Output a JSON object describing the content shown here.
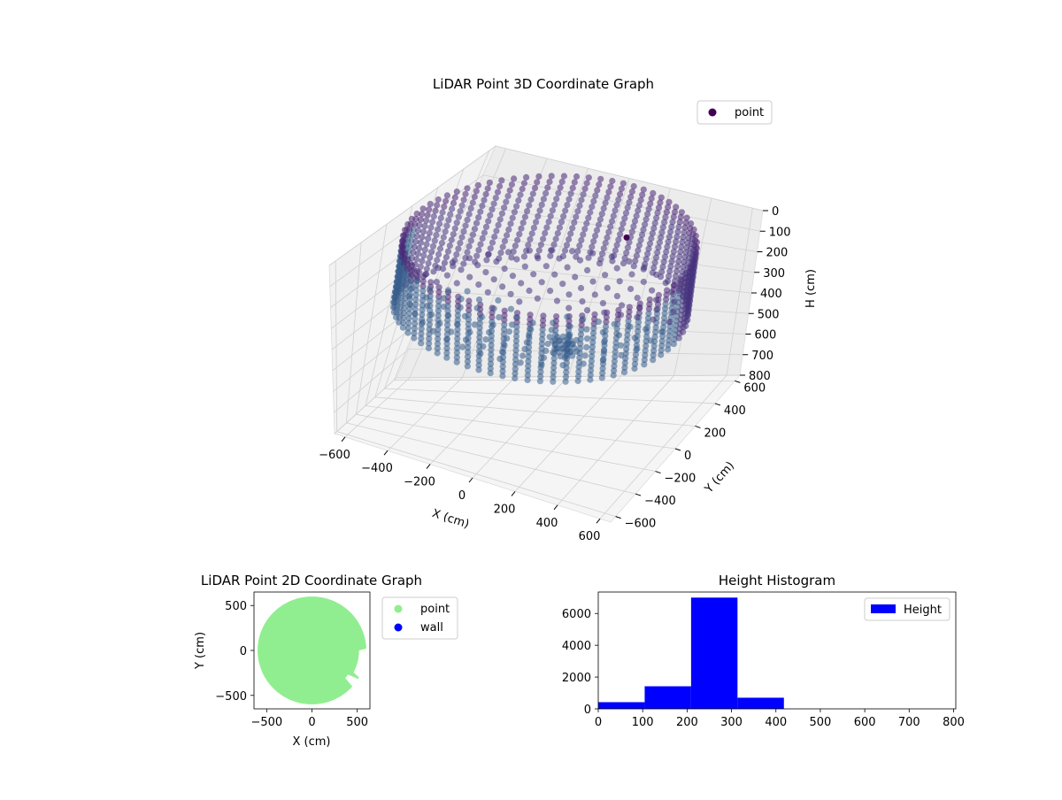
{
  "chart_data": [
    {
      "type": "scatter",
      "projection": "3d",
      "title": "LiDAR Point 3D Coordinate Graph",
      "xlabel": "X (cm)",
      "ylabel": "Y (cm)",
      "zlabel": "H (cm)",
      "xticks": [
        -600,
        -400,
        -200,
        0,
        200,
        400,
        600
      ],
      "yticks": [
        -600,
        -400,
        -200,
        0,
        200,
        400,
        600
      ],
      "zticks": [
        0,
        100,
        200,
        300,
        400,
        500,
        600,
        700,
        800
      ],
      "xlim": [
        -650,
        650
      ],
      "ylim": [
        -650,
        650
      ],
      "zlim": [
        0,
        800
      ],
      "zaxis_inverted": true,
      "grid": true,
      "legend": {
        "entries": [
          "point"
        ],
        "position": "upper-right"
      },
      "colormap": "viridis",
      "series": [
        {
          "name": "point",
          "description_values": {
            "wall_radius": 600,
            "floor_height": 300,
            "wall_top": 0
          }
        }
      ]
    },
    {
      "type": "scatter",
      "title": "LiDAR Point 2D Coordinate Graph",
      "xlabel": "X (cm)",
      "ylabel": "Y (cm)",
      "xticks": [
        -500,
        0,
        500
      ],
      "yticks": [
        500,
        0,
        -500
      ],
      "xlim": [
        -640,
        640
      ],
      "ylim": [
        -650,
        650
      ],
      "legend": {
        "entries": [
          "point",
          "wall"
        ],
        "position": "outside-right"
      },
      "series": [
        {
          "name": "point",
          "color": "#90ee90"
        },
        {
          "name": "wall",
          "color": "#0000ff"
        }
      ]
    },
    {
      "type": "bar",
      "histogram": true,
      "title": "Height Histogram",
      "xlabel": "",
      "ylabel": "",
      "xticks": [
        0,
        100,
        200,
        300,
        400,
        500,
        600,
        700,
        800
      ],
      "yticks": [
        0,
        2000,
        4000,
        6000
      ],
      "xlim": [
        0,
        805
      ],
      "ylim": [
        0,
        7350
      ],
      "bin_edges": [
        0,
        104.5,
        209,
        313.5,
        418,
        522.5,
        627,
        731.5,
        836
      ],
      "values": [
        420,
        1420,
        7000,
        700,
        0,
        0,
        0,
        0
      ],
      "legend": {
        "entries": [
          "Height"
        ],
        "position": "upper-right"
      },
      "series": [
        {
          "name": "Height",
          "color": "#0000ff"
        }
      ]
    }
  ]
}
